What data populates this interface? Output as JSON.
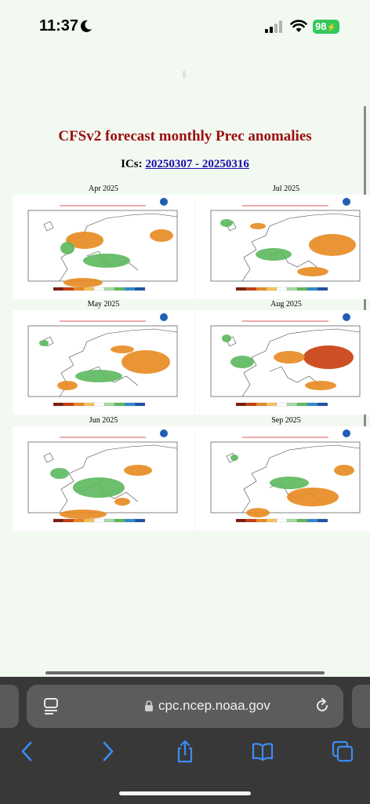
{
  "status_bar": {
    "time": "11:37",
    "battery": "98"
  },
  "page": {
    "title": "CFSv2 forecast monthly Prec anomalies",
    "ics_label": "ICs:",
    "ics_link": "20250307 - 20250316"
  },
  "panels": [
    {
      "label": "Apr 2025"
    },
    {
      "label": "Jul 2025"
    },
    {
      "label": "May 2025"
    },
    {
      "label": "Aug 2025"
    },
    {
      "label": "Jun 2025"
    },
    {
      "label": "Sep 2025"
    }
  ],
  "browser": {
    "url": "cpc.ncep.noaa.gov"
  },
  "colors": {
    "title_red": "#9b0e0e",
    "link_blue": "#1a0dab",
    "dry_orange": "#e8891f",
    "dry_red": "#c83c0c",
    "wet_green": "#5cb85c"
  }
}
